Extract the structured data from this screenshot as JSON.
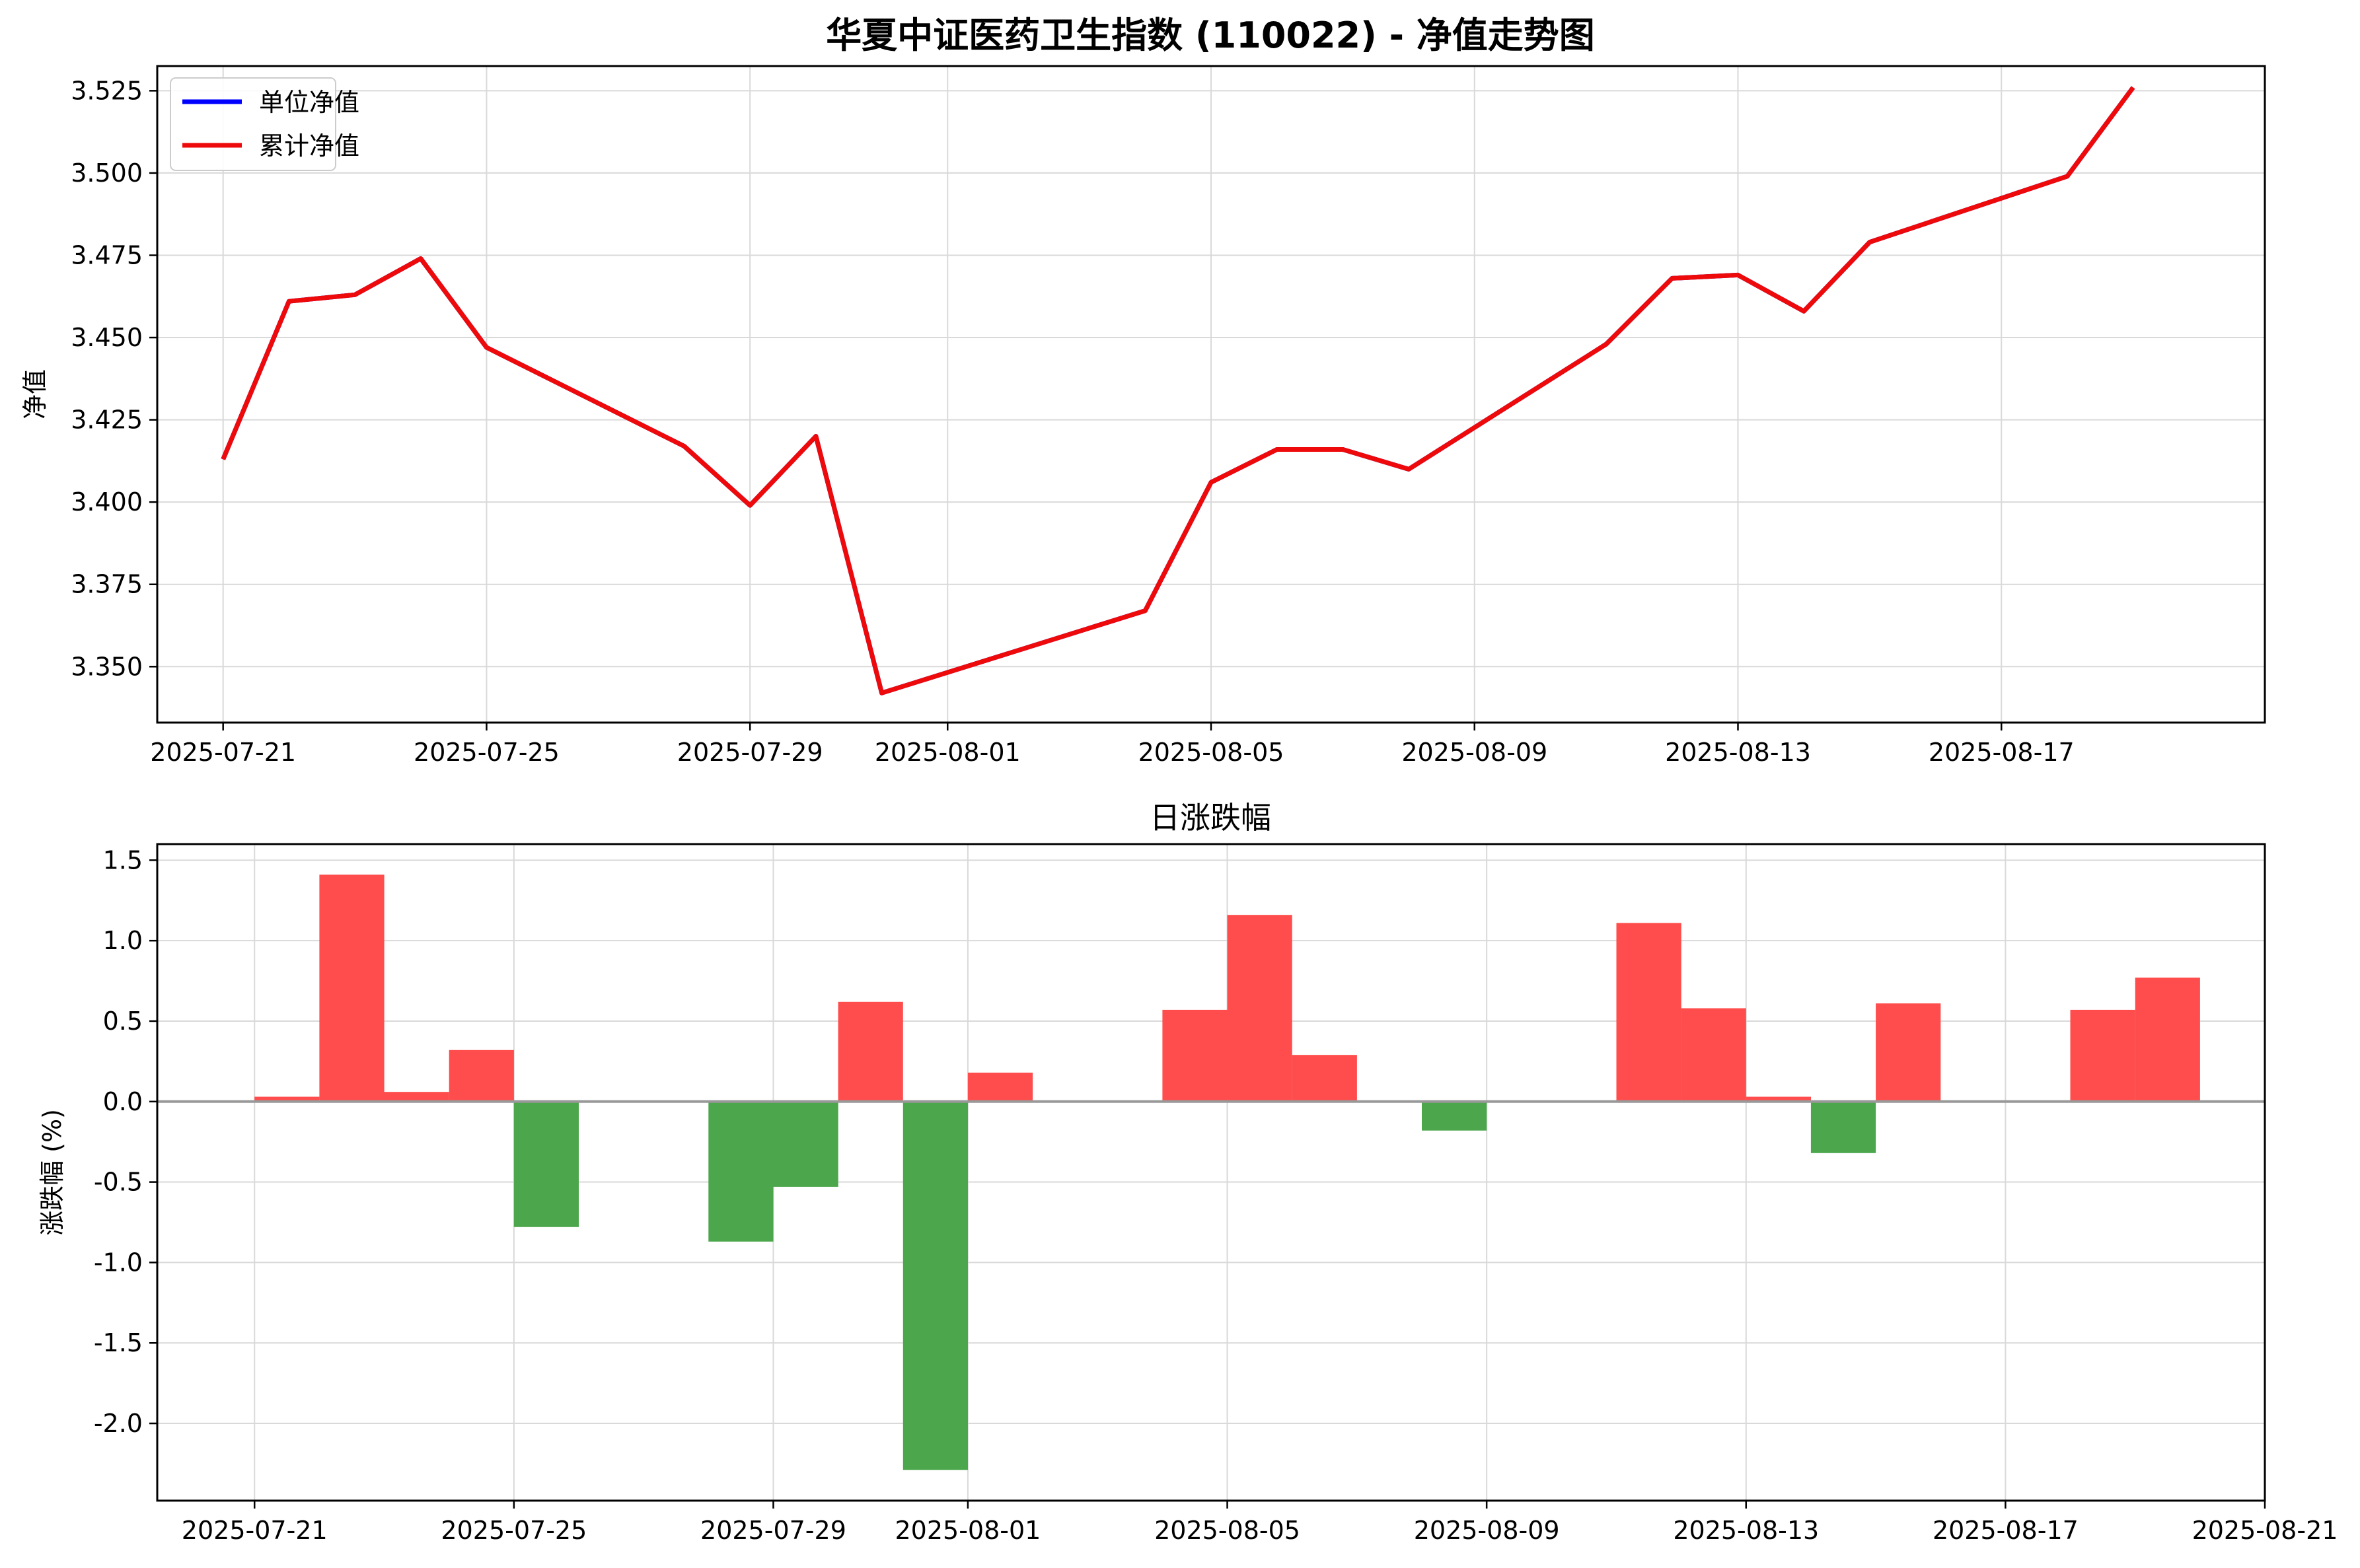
{
  "colors": {
    "nav_line": "#0000ff",
    "acc_line": "#ee0a0a",
    "up_bar": "#ff4c4c",
    "down_bar": "#4ca64c",
    "grid": "#d9d9d9",
    "zero_line": "#999999"
  },
  "chart_data": [
    {
      "type": "line",
      "title": "华夏中证医药卫生指数 (110022) - 净值走势图",
      "xlabel": "",
      "ylabel": "净值",
      "x_ticks": [
        "2025-07-21",
        "2025-07-25",
        "2025-07-29",
        "2025-08-01",
        "2025-08-05",
        "2025-08-09",
        "2025-08-13",
        "2025-08-17"
      ],
      "xlim": [
        "2025-07-20",
        "2025-08-21"
      ],
      "ylim": [
        3.333,
        3.5325
      ],
      "y_ticks": [
        3.35,
        3.375,
        3.4,
        3.425,
        3.45,
        3.475,
        3.5,
        3.525
      ],
      "grid": true,
      "legend": "top-left",
      "x": [
        "2025-07-21",
        "2025-07-22",
        "2025-07-23",
        "2025-07-24",
        "2025-07-25",
        "2025-07-28",
        "2025-07-29",
        "2025-07-30",
        "2025-07-31",
        "2025-08-04",
        "2025-08-05",
        "2025-08-06",
        "2025-08-07",
        "2025-08-08",
        "2025-08-11",
        "2025-08-12",
        "2025-08-13",
        "2025-08-14",
        "2025-08-15",
        "2025-08-18",
        "2025-08-19"
      ],
      "series": [
        {
          "name": "单位净值",
          "values": [
            3.413,
            3.461,
            3.463,
            3.474,
            3.447,
            3.417,
            3.399,
            3.42,
            3.342,
            3.367,
            3.406,
            3.416,
            3.416,
            3.41,
            3.448,
            3.468,
            3.469,
            3.458,
            3.479,
            3.499,
            3.526
          ]
        },
        {
          "name": "累计净值",
          "values": [
            3.413,
            3.461,
            3.463,
            3.474,
            3.447,
            3.417,
            3.399,
            3.42,
            3.342,
            3.367,
            3.406,
            3.416,
            3.416,
            3.41,
            3.448,
            3.468,
            3.469,
            3.458,
            3.479,
            3.499,
            3.526
          ]
        }
      ]
    },
    {
      "type": "bar",
      "title": "日涨跌幅",
      "xlabel": "",
      "ylabel": "涨跌幅 (%)",
      "x_ticks": [
        "2025-07-21",
        "2025-07-25",
        "2025-07-29",
        "2025-08-01",
        "2025-08-05",
        "2025-08-09",
        "2025-08-13",
        "2025-08-17",
        "2025-08-21"
      ],
      "xlim": [
        "2025-07-19.5",
        "2025-08-21"
      ],
      "ylim": [
        -2.48,
        1.6
      ],
      "y_ticks": [
        -2.0,
        -1.5,
        -1.0,
        -0.5,
        0.0,
        0.5,
        1.0,
        1.5
      ],
      "grid": true,
      "x": [
        "2025-07-21",
        "2025-07-22",
        "2025-07-23",
        "2025-07-24",
        "2025-07-25",
        "2025-07-28",
        "2025-07-29",
        "2025-07-30",
        "2025-07-31",
        "2025-08-01",
        "2025-08-04",
        "2025-08-05",
        "2025-08-06",
        "2025-08-08",
        "2025-08-11",
        "2025-08-12",
        "2025-08-13",
        "2025-08-14",
        "2025-08-15",
        "2025-08-18",
        "2025-08-19"
      ],
      "values": [
        0.03,
        1.41,
        0.06,
        0.32,
        -0.78,
        -0.87,
        -0.53,
        0.62,
        -2.29,
        0.18,
        0.57,
        1.16,
        0.29,
        -0.18,
        1.11,
        0.58,
        0.03,
        -0.32,
        0.61,
        0.57,
        0.77
      ]
    }
  ]
}
